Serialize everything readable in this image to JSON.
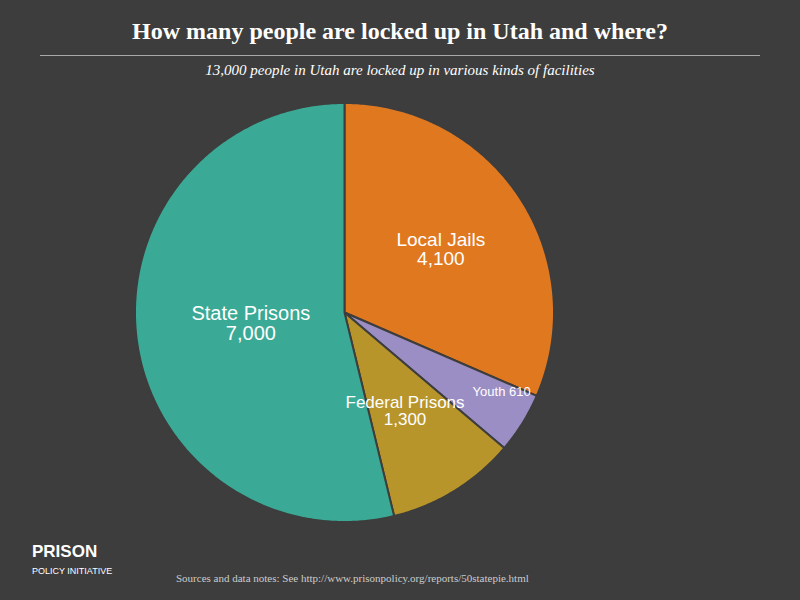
{
  "chart_data": {
    "type": "pie",
    "title": "How many people are locked up in Utah and where?",
    "subtitle": "13,000 people in Utah are locked up in various kinds of facilities",
    "categories": [
      "Local Jails",
      "Youth",
      "Federal Prisons",
      "State Prisons"
    ],
    "values": [
      4100,
      610,
      1300,
      7000
    ],
    "value_labels": [
      "Local Jails\n4,100",
      "Youth 610",
      "Federal Prisons\n1,300",
      "State Prisons\n7,000"
    ],
    "data_labels": true,
    "colors": [
      "#e07820",
      "#9b8ec4",
      "#b8952a",
      "#3aaa96"
    ],
    "annotations": [
      "Sources and data notes: See http://www.prisonpolicy.org/reports/50statepie.html",
      "PRISON",
      "POLICY INITIATIVE"
    ]
  }
}
